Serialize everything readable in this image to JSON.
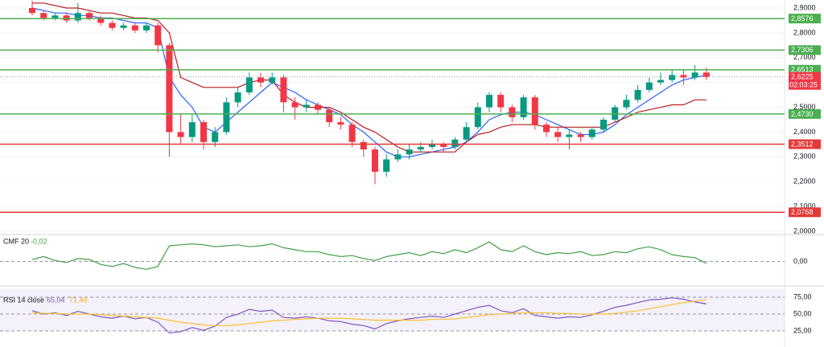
{
  "chart_data": [
    {
      "type": "candlestick",
      "open": [
        2.9,
        2.88,
        2.86,
        2.87,
        2.85,
        2.88,
        2.86,
        2.84,
        2.82,
        2.83,
        2.81,
        2.83,
        2.75,
        2.4,
        2.38,
        2.44,
        2.36,
        2.4,
        2.52,
        2.56,
        2.62,
        2.6,
        2.62,
        2.52,
        2.5,
        2.51,
        2.49,
        2.44,
        2.43,
        2.36,
        2.33,
        2.24,
        2.29,
        2.31,
        2.33,
        2.34,
        2.35,
        2.34,
        2.37,
        2.42,
        2.5,
        2.55,
        2.5,
        2.46,
        2.54,
        2.43,
        2.4,
        2.38,
        2.39,
        2.38,
        2.41,
        2.45,
        2.5,
        2.53,
        2.57,
        2.6,
        2.61,
        2.63,
        2.62,
        2.64
      ],
      "high": [
        2.93,
        2.89,
        2.88,
        2.88,
        2.92,
        2.89,
        2.87,
        2.85,
        2.84,
        2.84,
        2.84,
        2.84,
        2.76,
        2.47,
        2.47,
        2.45,
        2.42,
        2.54,
        2.58,
        2.64,
        2.64,
        2.64,
        2.63,
        2.54,
        2.53,
        2.52,
        2.5,
        2.46,
        2.44,
        2.37,
        2.34,
        2.31,
        2.33,
        2.35,
        2.36,
        2.37,
        2.36,
        2.38,
        2.44,
        2.52,
        2.56,
        2.56,
        2.51,
        2.55,
        2.55,
        2.44,
        2.42,
        2.41,
        2.4,
        2.42,
        2.46,
        2.51,
        2.55,
        2.59,
        2.62,
        2.64,
        2.65,
        2.65,
        2.67,
        2.66
      ],
      "low": [
        2.87,
        2.85,
        2.85,
        2.84,
        2.84,
        2.85,
        2.83,
        2.81,
        2.81,
        2.8,
        2.8,
        2.72,
        2.3,
        2.35,
        2.36,
        2.33,
        2.34,
        2.39,
        2.5,
        2.55,
        2.58,
        2.59,
        2.48,
        2.45,
        2.48,
        2.47,
        2.42,
        2.41,
        2.34,
        2.3,
        2.19,
        2.22,
        2.28,
        2.29,
        2.32,
        2.33,
        2.32,
        2.33,
        2.36,
        2.41,
        2.48,
        2.48,
        2.44,
        2.45,
        2.41,
        2.38,
        2.36,
        2.33,
        2.36,
        2.37,
        2.4,
        2.44,
        2.49,
        2.52,
        2.56,
        2.59,
        2.6,
        2.59,
        2.61,
        2.61
      ],
      "close": [
        2.88,
        2.86,
        2.87,
        2.85,
        2.88,
        2.86,
        2.84,
        2.82,
        2.83,
        2.81,
        2.83,
        2.75,
        2.4,
        2.38,
        2.44,
        2.36,
        2.4,
        2.52,
        2.56,
        2.62,
        2.6,
        2.62,
        2.52,
        2.5,
        2.51,
        2.49,
        2.44,
        2.43,
        2.36,
        2.33,
        2.24,
        2.29,
        2.31,
        2.33,
        2.34,
        2.35,
        2.34,
        2.37,
        2.42,
        2.5,
        2.55,
        2.5,
        2.46,
        2.54,
        2.43,
        2.4,
        2.38,
        2.39,
        2.38,
        2.41,
        2.45,
        2.5,
        2.53,
        2.57,
        2.6,
        2.61,
        2.63,
        2.62,
        2.64,
        2.6225
      ],
      "up_color": "#089981",
      "down_color": "#f23645",
      "series": [
        {
          "color": "#2962ff",
          "values": [
            2.9,
            2.89,
            2.88,
            2.88,
            2.87,
            2.87,
            2.86,
            2.86,
            2.85,
            2.84,
            2.84,
            2.82,
            2.62,
            2.55,
            2.5,
            2.42,
            2.4,
            2.44,
            2.48,
            2.52,
            2.56,
            2.6,
            2.58,
            2.56,
            2.53,
            2.51,
            2.49,
            2.47,
            2.43,
            2.4,
            2.36,
            2.32,
            2.3,
            2.3,
            2.31,
            2.32,
            2.33,
            2.34,
            2.36,
            2.4,
            2.45,
            2.47,
            2.48,
            2.48,
            2.47,
            2.45,
            2.43,
            2.41,
            2.39,
            2.39,
            2.4,
            2.43,
            2.47,
            2.5,
            2.53,
            2.56,
            2.59,
            2.61,
            2.62,
            2.63
          ]
        },
        {
          "color": "#b71c1c",
          "values": [
            2.92,
            2.92,
            2.91,
            2.9,
            2.9,
            2.89,
            2.88,
            2.88,
            2.87,
            2.86,
            2.86,
            2.85,
            2.8,
            2.62,
            2.6,
            2.58,
            2.58,
            2.58,
            2.58,
            2.6,
            2.61,
            2.61,
            2.55,
            2.52,
            2.5,
            2.5,
            2.5,
            2.48,
            2.45,
            2.42,
            2.4,
            2.37,
            2.34,
            2.32,
            2.32,
            2.32,
            2.32,
            2.32,
            2.36,
            2.39,
            2.4,
            2.42,
            2.43,
            2.43,
            2.43,
            2.42,
            2.42,
            2.42,
            2.42,
            2.42,
            2.42,
            2.44,
            2.46,
            2.48,
            2.49,
            2.5,
            2.51,
            2.51,
            2.53,
            2.53
          ]
        }
      ],
      "levels": [
        {
          "value": 2.8576,
          "label": "2,8576",
          "color": "#4caf50"
        },
        {
          "value": 2.7306,
          "label": "2,7306",
          "color": "#4caf50"
        },
        {
          "value": 2.6513,
          "label": "2,6513",
          "color": "#4caf50"
        },
        {
          "value": 2.473,
          "label": "2,4730",
          "color": "#4caf50"
        },
        {
          "value": 2.3512,
          "label": "2,3512",
          "color": "#e53935"
        },
        {
          "value": 2.0768,
          "label": "2,0768",
          "color": "#e53935"
        }
      ],
      "last_price": {
        "value": 2.6225,
        "label": "2,6225"
      },
      "countdown": "02:03:25",
      "ylim": [
        1.9935,
        2.9324
      ],
      "yticks": [
        {
          "value": 2.0,
          "label": "2,0000"
        },
        {
          "value": 2.1,
          "label": "2,1000"
        },
        {
          "value": 2.2,
          "label": "2,2000"
        },
        {
          "value": 2.3,
          "label": "2,3000"
        },
        {
          "value": 2.4,
          "label": "2,4000"
        },
        {
          "value": 2.5,
          "label": "2,5000"
        },
        {
          "value": 2.6,
          "label": "2,6000"
        },
        {
          "value": 2.7,
          "label": "2,7000"
        },
        {
          "value": 2.8,
          "label": "2,8000"
        },
        {
          "value": 2.9,
          "label": "2,9000"
        }
      ]
    },
    {
      "type": "line",
      "title": "CMF 20",
      "legend_values": [
        "-0,02"
      ],
      "series": [
        {
          "color": "#43a047",
          "values": [
            0.02,
            0.05,
            0.01,
            -0.01,
            0.03,
            0.02,
            -0.03,
            -0.05,
            -0.02,
            -0.06,
            -0.08,
            -0.05,
            0.16,
            0.17,
            0.18,
            0.17,
            0.15,
            0.16,
            0.17,
            0.15,
            0.16,
            0.18,
            0.14,
            0.12,
            0.1,
            0.1,
            0.07,
            0.05,
            0.06,
            0.03,
            0.01,
            0.05,
            0.07,
            0.09,
            0.06,
            0.1,
            0.08,
            0.12,
            0.09,
            0.14,
            0.2,
            0.12,
            0.1,
            0.16,
            0.1,
            0.07,
            0.09,
            0.08,
            0.1,
            0.06,
            0.07,
            0.1,
            0.09,
            0.13,
            0.15,
            0.12,
            0.07,
            0.05,
            0.04,
            -0.02
          ]
        }
      ],
      "ylim": [
        -0.2,
        0.25
      ],
      "yticks": [
        {
          "value": 0,
          "label": "0,00"
        }
      ]
    },
    {
      "type": "line",
      "title": "RSI 14 close",
      "legend_values": [
        "65,04",
        "71,40"
      ],
      "series": [
        {
          "color": "#7e57c2",
          "values": [
            55,
            50,
            52,
            48,
            54,
            50,
            46,
            44,
            47,
            43,
            45,
            38,
            22,
            24,
            30,
            26,
            32,
            45,
            50,
            57,
            54,
            56,
            45,
            44,
            46,
            44,
            40,
            39,
            35,
            33,
            28,
            36,
            40,
            43,
            45,
            47,
            45,
            50,
            55,
            60,
            63,
            55,
            52,
            58,
            48,
            46,
            44,
            46,
            45,
            49,
            54,
            60,
            63,
            67,
            71,
            72,
            74,
            72,
            68,
            65.04
          ]
        },
        {
          "color": "#fbc02d",
          "values": [
            52,
            51,
            51,
            50,
            50,
            50,
            49,
            48,
            47,
            46,
            45,
            44,
            41,
            38,
            36,
            34,
            33,
            33,
            34,
            36,
            38,
            40,
            41,
            42,
            43,
            44,
            44,
            44,
            43,
            42,
            41,
            41,
            41,
            41,
            41,
            42,
            42,
            43,
            45,
            47,
            49,
            50,
            51,
            52,
            52,
            52,
            51,
            51,
            50,
            50,
            50,
            51,
            53,
            55,
            58,
            61,
            64,
            67,
            69,
            71.4
          ]
        }
      ],
      "ylim": [
        3.6,
        86.9
      ],
      "yticks": [
        {
          "value": 75,
          "label": "75,00"
        },
        {
          "value": 50,
          "label": "50,00"
        },
        {
          "value": 25,
          "label": "25,00"
        }
      ]
    }
  ]
}
